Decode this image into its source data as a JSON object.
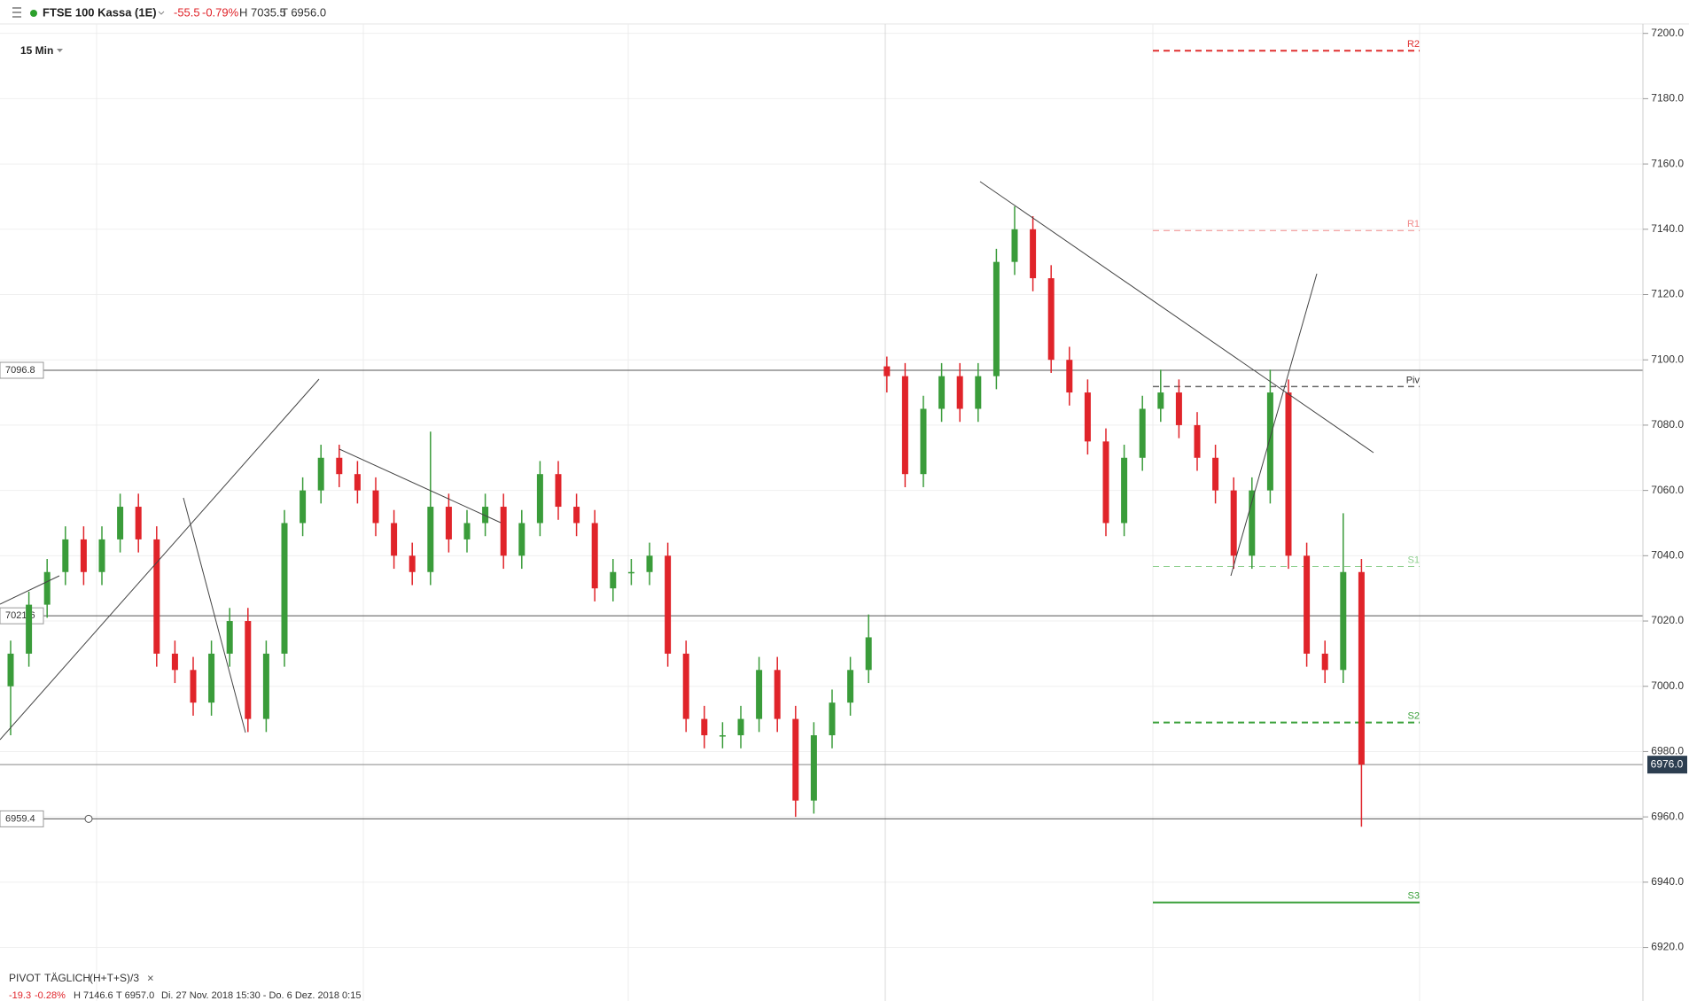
{
  "header": {
    "symbol": "FTSE 100 Kassa (1E)",
    "change": "-55.5",
    "change_pct": "-0.79%",
    "high": "H 7035.5",
    "low": "T 6956.0"
  },
  "timeframe": "15 Min",
  "chart_data": {
    "type": "candlestick",
    "open": [
      7000,
      7010,
      7025,
      7035,
      7045,
      7035,
      7045,
      7055,
      7045,
      7010,
      7005,
      6995,
      7010,
      7020,
      6990,
      7010,
      7050,
      7060,
      7070,
      7065,
      7060,
      7050,
      7040,
      7035,
      7055,
      7045,
      7050,
      7055,
      7040,
      7050,
      7065,
      7055,
      7050,
      7030,
      7035,
      7035,
      7040,
      7010,
      6990,
      6985,
      6985,
      6990,
      7005,
      6990,
      6965,
      6985,
      6995,
      7005,
      7098,
      7095,
      7065,
      7085,
      7095,
      7085,
      7095,
      7130,
      7140,
      7125,
      7100,
      7090,
      7075,
      7050,
      7070,
      7085,
      7090,
      7080,
      7070,
      7060,
      7040,
      7060,
      7090,
      7040,
      7010,
      7005,
      7035
    ],
    "high": [
      7014,
      7029,
      7039,
      7049,
      7049,
      7049,
      7059,
      7059,
      7049,
      7014,
      7009,
      7014,
      7024,
      7024,
      7014,
      7054,
      7064,
      7074,
      7074,
      7069,
      7064,
      7054,
      7044,
      7078,
      7059,
      7054,
      7059,
      7059,
      7054,
      7069,
      7069,
      7059,
      7054,
      7039,
      7039,
      7044,
      7044,
      7014,
      6994,
      6989,
      6994,
      7009,
      7009,
      6994,
      6989,
      6999,
      7009,
      7022,
      7101,
      7099,
      7089,
      7099,
      7099,
      7099,
      7134,
      7147,
      7144,
      7129,
      7104,
      7094,
      7079,
      7074,
      7089,
      7097,
      7094,
      7084,
      7074,
      7064,
      7064,
      7097,
      7094,
      7044,
      7014,
      7053,
      7039
    ],
    "low": [
      6985,
      7006,
      7021,
      7031,
      7031,
      7031,
      7041,
      7041,
      7006,
      7001,
      6991,
      6991,
      7006,
      6986,
      6986,
      7006,
      7046,
      7056,
      7061,
      7056,
      7046,
      7036,
      7031,
      7031,
      7041,
      7041,
      7046,
      7036,
      7036,
      7046,
      7051,
      7046,
      7026,
      7026,
      7031,
      7031,
      7006,
      6986,
      6981,
      6981,
      6981,
      6986,
      6986,
      6960,
      6961,
      6981,
      6991,
      7001,
      7090,
      7061,
      7061,
      7081,
      7081,
      7081,
      7091,
      7126,
      7121,
      7096,
      7086,
      7071,
      7046,
      7046,
      7066,
      7081,
      7076,
      7066,
      7056,
      7036,
      7036,
      7056,
      7036,
      7006,
      7001,
      7001,
      6957
    ],
    "close": [
      7010,
      7025,
      7035,
      7045,
      7035,
      7045,
      7055,
      7045,
      7010,
      7005,
      6995,
      7010,
      7020,
      6990,
      7010,
      7050,
      7060,
      7070,
      7065,
      7060,
      7050,
      7040,
      7035,
      7055,
      7045,
      7050,
      7055,
      7040,
      7050,
      7065,
      7055,
      7050,
      7030,
      7035,
      7035,
      7040,
      7010,
      6990,
      6985,
      6985,
      6990,
      7005,
      6990,
      6965,
      6985,
      6995,
      7005,
      7015,
      7095,
      7065,
      7085,
      7095,
      7085,
      7095,
      7130,
      7140,
      7125,
      7100,
      7090,
      7075,
      7050,
      7070,
      7085,
      7090,
      7080,
      7070,
      7060,
      7040,
      7060,
      7090,
      7040,
      7010,
      7005,
      7035,
      6976
    ],
    "up_color": "#3a9c3a",
    "down_color": "#e0242a",
    "ylim": [
      6903.6,
      7202.9
    ],
    "yticks": [
      {
        "value": 6920,
        "label": "6920.0"
      },
      {
        "value": 6940,
        "label": "6940.0"
      },
      {
        "value": 6960,
        "label": "6960.0"
      },
      {
        "value": 6980,
        "label": "6980.0"
      },
      {
        "value": 7000,
        "label": "7000.0"
      },
      {
        "value": 7020,
        "label": "7020.0"
      },
      {
        "value": 7040,
        "label": "7040.0"
      },
      {
        "value": 7060,
        "label": "7060.0"
      },
      {
        "value": 7080,
        "label": "7080.0"
      },
      {
        "value": 7100,
        "label": "7100.0"
      },
      {
        "value": 7120,
        "label": "7120.0"
      },
      {
        "value": 7140,
        "label": "7140.0"
      },
      {
        "value": 7160,
        "label": "7160.0"
      },
      {
        "value": 7180,
        "label": "7180.0"
      },
      {
        "value": 7200,
        "label": "7200.0"
      }
    ],
    "grid": true,
    "horizontal_lines": [
      7096.8,
      7021.6,
      6959.4
    ],
    "last_price": {
      "value": 6976,
      "label": "6976.0"
    },
    "pivots": [
      {
        "name": "R2",
        "value": 7194.7,
        "color": "#e03030",
        "width": 2,
        "dashed": true
      },
      {
        "name": "R1",
        "value": 7139.6,
        "color": "#f08a8a",
        "width": 1,
        "dashed": true
      },
      {
        "name": "Piv",
        "value": 7091.8,
        "color": "#666666",
        "width": 1.5,
        "dashed": true
      },
      {
        "name": "S1",
        "value": 7036.7,
        "color": "#8fd08f",
        "width": 1,
        "dashed": true
      },
      {
        "name": "S2",
        "value": 6988.9,
        "color": "#3aa03a",
        "width": 2,
        "dashed": true
      },
      {
        "name": "S3",
        "value": 6933.8,
        "color": "#3aa03a",
        "width": 2,
        "dashed": false
      }
    ]
  },
  "indicator": {
    "name": "PIVOT",
    "period": "TÄGLICH",
    "formula": "(H+T+S)/3",
    "close": "×"
  },
  "footer": {
    "change": "-19.3",
    "change_pct": "-0.28%",
    "high": "H 7146.6",
    "low": "T 6957.0",
    "range": "Di. 27 Nov. 2018 15:30 - Do. 6 Dez. 2018 0:15"
  }
}
